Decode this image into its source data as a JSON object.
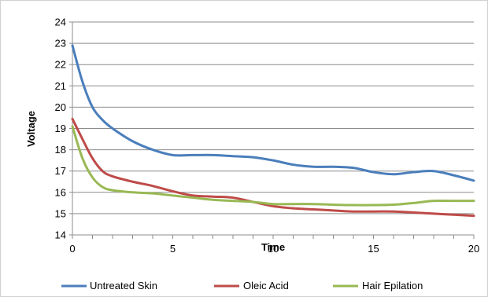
{
  "chart_data": {
    "type": "line",
    "title": "",
    "xlabel": "Time",
    "ylabel": "Voltage",
    "xlim": [
      0,
      20
    ],
    "ylim": [
      14,
      24
    ],
    "xticks": [
      "0",
      "5",
      "10",
      "15",
      "20"
    ],
    "yticks": [
      "14",
      "15",
      "16",
      "17",
      "18",
      "19",
      "20",
      "21",
      "22",
      "23",
      "24"
    ],
    "grid": true,
    "legend_position": "bottom",
    "series": [
      {
        "name": "Untreated Skin",
        "color": "#4A7EBB",
        "x": [
          0,
          0.5,
          1,
          1.5,
          2,
          3,
          4,
          5,
          6,
          7,
          8,
          9,
          10,
          11,
          12,
          13,
          14,
          15,
          16,
          17,
          18,
          19,
          20
        ],
        "y": [
          22.9,
          21.2,
          20.0,
          19.4,
          19.0,
          18.4,
          18.0,
          17.75,
          17.75,
          17.75,
          17.7,
          17.65,
          17.5,
          17.3,
          17.2,
          17.2,
          17.15,
          16.95,
          16.85,
          16.95,
          17.0,
          16.8,
          16.55
        ]
      },
      {
        "name": "Oleic Acid",
        "color": "#BE4B48",
        "x": [
          0,
          0.5,
          1,
          1.5,
          2,
          3,
          4,
          5,
          6,
          7,
          8,
          9,
          10,
          11,
          12,
          13,
          14,
          15,
          16,
          17,
          18,
          19,
          20
        ],
        "y": [
          19.45,
          18.5,
          17.6,
          17.0,
          16.75,
          16.5,
          16.3,
          16.05,
          15.85,
          15.8,
          15.75,
          15.55,
          15.35,
          15.25,
          15.2,
          15.15,
          15.1,
          15.1,
          15.1,
          15.05,
          15.0,
          14.95,
          14.9
        ]
      },
      {
        "name": "Hair Epilation",
        "color": "#98B954",
        "x": [
          0,
          0.5,
          1,
          1.5,
          2,
          3,
          4,
          5,
          6,
          7,
          8,
          9,
          10,
          11,
          12,
          13,
          14,
          15,
          16,
          17,
          18,
          19,
          20
        ],
        "y": [
          19.1,
          17.6,
          16.7,
          16.25,
          16.1,
          16.0,
          15.95,
          15.85,
          15.75,
          15.65,
          15.6,
          15.55,
          15.45,
          15.45,
          15.45,
          15.42,
          15.4,
          15.4,
          15.42,
          15.5,
          15.6,
          15.6,
          15.6
        ]
      }
    ]
  }
}
